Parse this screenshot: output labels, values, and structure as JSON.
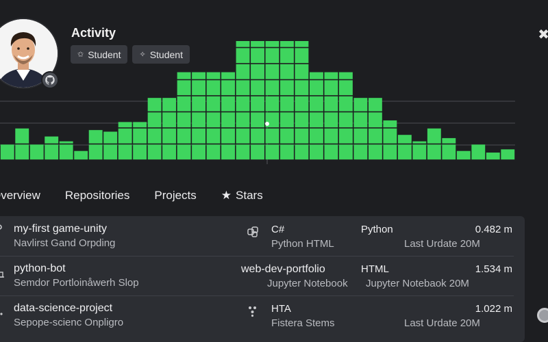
{
  "profile": {
    "title": "Activity",
    "badges": [
      "Student",
      "Student"
    ]
  },
  "chart_data": {
    "type": "bar",
    "values": [
      1,
      2,
      1,
      1.5,
      1.2,
      0.6,
      1.9,
      1.8,
      2.4,
      2.4,
      3.9,
      3.9,
      5.5,
      5.5,
      5.5,
      5.5,
      9.5,
      11.5,
      15.3,
      9.5,
      9.5,
      5.5,
      5.5,
      5.5,
      3.9,
      3.9,
      2.5,
      1.6,
      1.2,
      2,
      1.4,
      0.6,
      1,
      0.5,
      0.7
    ],
    "grid": true
  },
  "tabs": [
    "Overview",
    "Repositories",
    "Projects",
    "Stars"
  ],
  "repos": [
    {
      "name": "my-first game-unity",
      "sub": "Navlirst Gand Orpding",
      "lang": "C#",
      "lang_sub": "Python HTML",
      "lang3": "Python",
      "extra": "Last Urdate 20M",
      "size": "0.482 m"
    },
    {
      "name": "python-bot",
      "sub": "Semdor Portloinåwerh Slop",
      "lang": "web-dev-portfolio",
      "lang_sub": "Jupyter Notebook",
      "lang3": "HTML",
      "extra": "Jupyter Notebaok  20M",
      "size": "1.534 m"
    },
    {
      "name": "data-science-project",
      "sub": "Sepope-scienc Onpligro",
      "lang": "HTA",
      "lang_sub": "Fistera Stems",
      "lang3": "",
      "extra": "Last Urdate 20M",
      "size": "1.022 m"
    }
  ],
  "close_label": "✖"
}
